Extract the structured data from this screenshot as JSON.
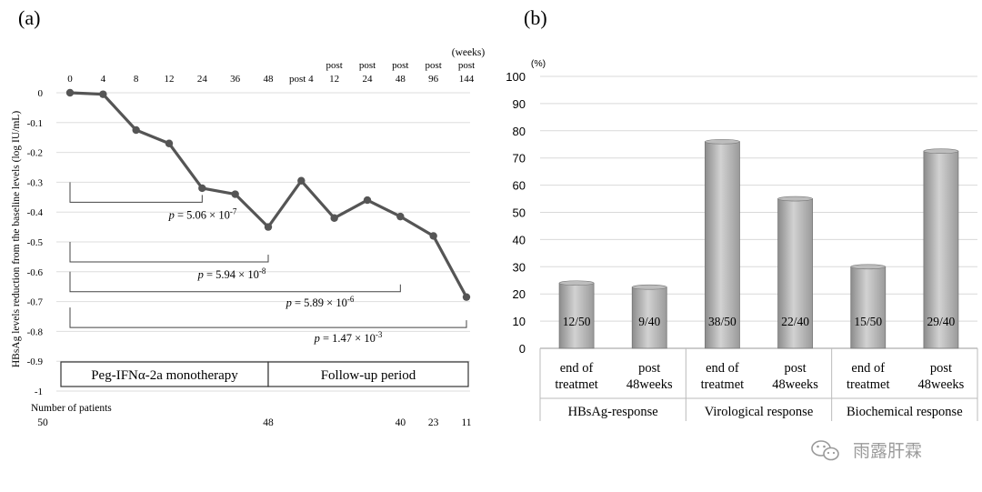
{
  "chart_data": [
    {
      "panel_label": "(a)",
      "type": "line",
      "ylabel": "HBsAg levels reduction from the baseline levels (log IU/mL)",
      "x_unit": "(weeks)",
      "ylim": [
        -1,
        0
      ],
      "y_ticks": [
        "0",
        "-0.1",
        "-0.2",
        "-0.3",
        "-0.4",
        "-0.5",
        "-0.6",
        "-0.7",
        "-0.8",
        "-0.9",
        "-1"
      ],
      "x_ticks": [
        {
          "top": "",
          "bottom": "0"
        },
        {
          "top": "",
          "bottom": "4"
        },
        {
          "top": "",
          "bottom": "8"
        },
        {
          "top": "",
          "bottom": "12"
        },
        {
          "top": "",
          "bottom": "24"
        },
        {
          "top": "",
          "bottom": "36"
        },
        {
          "top": "",
          "bottom": "48"
        },
        {
          "top": "",
          "bottom": "post 4"
        },
        {
          "top": "post",
          "bottom": "12"
        },
        {
          "top": "post",
          "bottom": "24"
        },
        {
          "top": "post",
          "bottom": "48"
        },
        {
          "top": "post",
          "bottom": "96"
        },
        {
          "top": "post",
          "bottom": "144"
        }
      ],
      "series": [
        {
          "values": [
            0,
            -0.005,
            -0.125,
            -0.17,
            -0.32,
            -0.34,
            -0.45,
            -0.295,
            -0.42,
            -0.36,
            -0.415,
            -0.48,
            -0.685
          ]
        }
      ],
      "comparisons": [
        {
          "from": 0,
          "to": 4,
          "label_p": "p",
          "label_eq": " = 5.06 × 10",
          "label_exp": "-7"
        },
        {
          "from": 0,
          "to": 6,
          "label_p": "p",
          "label_eq": " = 5.94 × 10",
          "label_exp": "-8"
        },
        {
          "from": 0,
          "to": 10,
          "label_p": "p",
          "label_eq": " = 5.89 × 10",
          "label_exp": "-6"
        },
        {
          "from": 0,
          "to": 12,
          "label_p": "p",
          "label_eq": " = 1.47 × 10",
          "label_exp": "-3"
        }
      ],
      "periods": [
        "Peg-IFNα-2a monotherapy",
        "Follow-up period"
      ],
      "patients": {
        "title": "Number of patients",
        "entries": [
          {
            "at": 0,
            "n": "50"
          },
          {
            "at": 6,
            "n": "48"
          },
          {
            "at": 10,
            "n": "40"
          },
          {
            "at": 11,
            "n": "23"
          },
          {
            "at": 12,
            "n": "11"
          }
        ]
      }
    },
    {
      "panel_label": "(b)",
      "type": "bar",
      "y_unit": "(%)",
      "ylim": [
        0,
        100
      ],
      "y_ticks": [
        "0",
        "10",
        "20",
        "30",
        "40",
        "50",
        "60",
        "70",
        "80",
        "90",
        "100"
      ],
      "grid": true,
      "bars": [
        {
          "line1": "end of",
          "line2": "treatmet",
          "value": 24,
          "label": "12/50"
        },
        {
          "line1": "post",
          "line2": "48weeks",
          "value": 22.5,
          "label": "9/40"
        },
        {
          "line1": "end of",
          "line2": "treatmet",
          "value": 76,
          "label": "38/50"
        },
        {
          "line1": "post",
          "line2": "48weeks",
          "value": 55,
          "label": "22/40"
        },
        {
          "line1": "end of",
          "line2": "treatmet",
          "value": 30,
          "label": "15/50"
        },
        {
          "line1": "post",
          "line2": "48weeks",
          "value": 72.5,
          "label": "29/40"
        }
      ],
      "groups": [
        "HBsAg-response",
        "Virological response",
        "Biochemical response"
      ]
    }
  ],
  "watermark": {
    "icon": "wechat-icon",
    "text": "雨露肝霖"
  }
}
